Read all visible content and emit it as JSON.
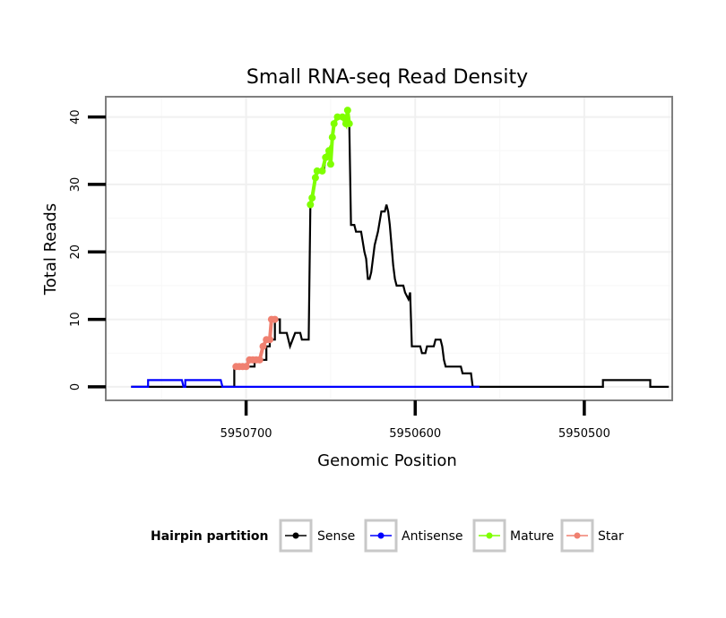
{
  "chart_data": {
    "type": "line",
    "title": "Small RNA-seq Read Density",
    "xlabel": "Genomic Position",
    "ylabel": "Total Reads",
    "xlim": [
      5950783,
      5950448
    ],
    "ylim": [
      -2,
      43
    ],
    "x_reversed": true,
    "grid": true,
    "legend_position": "bottom",
    "x_ticks": [
      5950700,
      5950600,
      5950500
    ],
    "x_tick_labels": [
      "5950700",
      "5950600",
      "5950500"
    ],
    "y_ticks": [
      0,
      10,
      20,
      30,
      40
    ],
    "y_tick_labels": [
      "0",
      "10",
      "20",
      "30",
      "40"
    ],
    "legend": {
      "title": "Hairpin partition",
      "entries": [
        {
          "name": "Sense",
          "color": "#000000"
        },
        {
          "name": "Antisense",
          "color": "#0000ff"
        },
        {
          "name": "Mature",
          "color": "#7fff00"
        },
        {
          "name": "Star",
          "color": "#f08070"
        }
      ]
    },
    "series": [
      {
        "name": "Sense",
        "color": "#000000",
        "points": [
          [
            5950768,
            0
          ],
          [
            5950707,
            0
          ],
          [
            5950707,
            3
          ],
          [
            5950695,
            3
          ],
          [
            5950695,
            4
          ],
          [
            5950688,
            4
          ],
          [
            5950688,
            6
          ],
          [
            5950686,
            6
          ],
          [
            5950686,
            7
          ],
          [
            5950683,
            7
          ],
          [
            5950683,
            10
          ],
          [
            5950680,
            10
          ],
          [
            5950680,
            8
          ],
          [
            5950676,
            8
          ],
          [
            5950674,
            6
          ],
          [
            5950671,
            8
          ],
          [
            5950668,
            8
          ],
          [
            5950667,
            7
          ],
          [
            5950663,
            7
          ],
          [
            5950662,
            27
          ],
          [
            5950661,
            28
          ],
          [
            5950659,
            31
          ],
          [
            5950658,
            32
          ],
          [
            5950654,
            32
          ],
          [
            5950653,
            34
          ],
          [
            5950651,
            35
          ],
          [
            5950650,
            33
          ],
          [
            5950649,
            37
          ],
          [
            5950648,
            39
          ],
          [
            5950646,
            40
          ],
          [
            5950642,
            40
          ],
          [
            5950641,
            39
          ],
          [
            5950640,
            41
          ],
          [
            5950639,
            39
          ],
          [
            5950638,
            24
          ],
          [
            5950636,
            24
          ],
          [
            5950635,
            23
          ],
          [
            5950632,
            23
          ],
          [
            5950630,
            20
          ],
          [
            5950629,
            19
          ],
          [
            5950628,
            16
          ],
          [
            5950627,
            16
          ],
          [
            5950626,
            17
          ],
          [
            5950624,
            21
          ],
          [
            5950622,
            23
          ],
          [
            5950620,
            26
          ],
          [
            5950618,
            26
          ],
          [
            5950617,
            27
          ],
          [
            5950616,
            26
          ],
          [
            5950615,
            24
          ],
          [
            5950614,
            21
          ],
          [
            5950613,
            18
          ],
          [
            5950612,
            16
          ],
          [
            5950611,
            15
          ],
          [
            5950607,
            15
          ],
          [
            5950606,
            14
          ],
          [
            5950604,
            13
          ],
          [
            5950603,
            14
          ],
          [
            5950602,
            6
          ],
          [
            5950597,
            6
          ],
          [
            5950596,
            5
          ],
          [
            5950594,
            5
          ],
          [
            5950593,
            6
          ],
          [
            5950589,
            6
          ],
          [
            5950588,
            7
          ],
          [
            5950585,
            7
          ],
          [
            5950584,
            6
          ],
          [
            5950583,
            4
          ],
          [
            5950582,
            3
          ],
          [
            5950573,
            3
          ],
          [
            5950572,
            2
          ],
          [
            5950567,
            2
          ],
          [
            5950566,
            0
          ],
          [
            5950489,
            0
          ],
          [
            5950489,
            1
          ],
          [
            5950461,
            1
          ],
          [
            5950461,
            0
          ],
          [
            5950450,
            0
          ]
        ]
      },
      {
        "name": "Antisense",
        "color": "#0000ff",
        "points": [
          [
            5950768,
            0
          ],
          [
            5950758,
            0
          ],
          [
            5950758,
            1
          ],
          [
            5950738,
            1
          ],
          [
            5950737,
            0
          ],
          [
            5950736,
            0
          ],
          [
            5950736,
            1
          ],
          [
            5950715,
            1
          ],
          [
            5950714,
            0
          ],
          [
            5950562,
            0
          ]
        ]
      },
      {
        "name": "Mature",
        "color": "#7fff00",
        "points": [
          [
            5950662,
            27
          ],
          [
            5950661,
            28
          ],
          [
            5950659,
            31
          ],
          [
            5950658,
            32
          ],
          [
            5950655,
            32
          ],
          [
            5950653,
            34
          ],
          [
            5950651,
            35
          ],
          [
            5950650,
            33
          ],
          [
            5950649,
            37
          ],
          [
            5950648,
            39
          ],
          [
            5950646,
            40
          ],
          [
            5950643,
            40
          ],
          [
            5950641,
            39
          ],
          [
            5950640,
            41
          ],
          [
            5950639,
            39
          ]
        ]
      },
      {
        "name": "Star",
        "color": "#f08070",
        "points": [
          [
            5950706,
            3
          ],
          [
            5950704,
            3
          ],
          [
            5950702,
            3
          ],
          [
            5950700,
            3
          ],
          [
            5950698,
            4
          ],
          [
            5950696,
            4
          ],
          [
            5950694,
            4
          ],
          [
            5950692,
            4
          ],
          [
            5950690,
            6
          ],
          [
            5950688,
            7
          ],
          [
            5950686,
            7
          ],
          [
            5950685,
            10
          ],
          [
            5950683,
            10
          ]
        ]
      }
    ]
  }
}
